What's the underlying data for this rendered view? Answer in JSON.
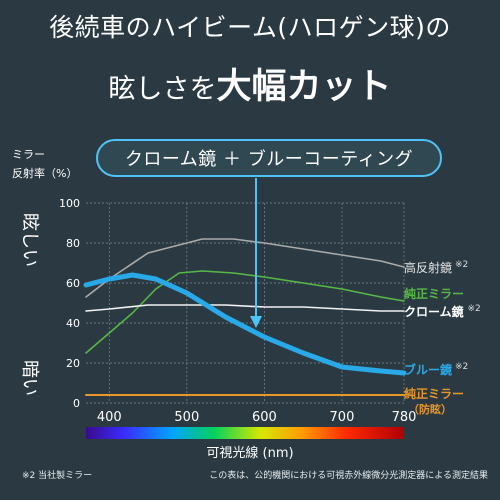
{
  "headline": {
    "line1": "後続車のハイビーム(ハロゲン球)の",
    "line2_prefix": "眩しさを",
    "line2_big": "大幅カット"
  },
  "callout": "クローム鏡 ＋ ブルーコーティング",
  "y_title_1": "ミラー",
  "y_title_2": "反射率（%）",
  "y_side_top": "眩しい",
  "y_side_bottom": "暗い",
  "x_title": "可視光線 (nm)",
  "footnote_left": "※2 当社製ミラー",
  "footnote_right": "この表は、公的機関における可視赤外線微分光測定器による測定結果",
  "colors": {
    "background": "#2b3a42",
    "blue": "#2aa9e8",
    "green": "#58b847",
    "gray": "#aaaaaa",
    "white": "#f2f2f2",
    "orange": "#e8952a",
    "callout_border": "#4fc3f7"
  },
  "chart_data": {
    "type": "line",
    "ylim": [
      0,
      100
    ],
    "yticks": [
      0,
      20,
      40,
      60,
      80,
      100
    ],
    "xlim": [
      370,
      780
    ],
    "xticks": [
      400,
      500,
      600,
      700,
      780
    ],
    "grid": true,
    "series": [
      {
        "name": "高反射鏡",
        "note": "※2",
        "color": "#aaaaaa",
        "points": [
          [
            370,
            53
          ],
          [
            400,
            62
          ],
          [
            450,
            75
          ],
          [
            500,
            80
          ],
          [
            520,
            82
          ],
          [
            560,
            82
          ],
          [
            600,
            80
          ],
          [
            650,
            77
          ],
          [
            700,
            74
          ],
          [
            750,
            71
          ],
          [
            780,
            68
          ]
        ]
      },
      {
        "name": "純正ミラー",
        "note": "",
        "color": "#58b847",
        "points": [
          [
            370,
            25
          ],
          [
            400,
            35
          ],
          [
            430,
            45
          ],
          [
            460,
            57
          ],
          [
            490,
            65
          ],
          [
            520,
            66
          ],
          [
            560,
            65
          ],
          [
            600,
            63
          ],
          [
            650,
            60
          ],
          [
            700,
            57
          ],
          [
            750,
            53
          ],
          [
            780,
            51
          ]
        ]
      },
      {
        "name": "クローム鏡",
        "note": "※2",
        "color": "#f2f2f2",
        "points": [
          [
            370,
            46
          ],
          [
            400,
            47
          ],
          [
            450,
            49
          ],
          [
            500,
            49
          ],
          [
            550,
            49
          ],
          [
            600,
            48
          ],
          [
            650,
            48
          ],
          [
            700,
            47
          ],
          [
            750,
            46
          ],
          [
            780,
            46
          ]
        ]
      },
      {
        "name": "ブルー鏡",
        "note": "※2",
        "color": "#2aa9e8",
        "points": [
          [
            370,
            59
          ],
          [
            400,
            62
          ],
          [
            430,
            64
          ],
          [
            460,
            62
          ],
          [
            500,
            55
          ],
          [
            550,
            43
          ],
          [
            600,
            33
          ],
          [
            650,
            25
          ],
          [
            700,
            18
          ],
          [
            750,
            16
          ],
          [
            780,
            15
          ]
        ]
      },
      {
        "name": "純正ミラー",
        "note": "（防眩）",
        "color": "#e8952a",
        "points": [
          [
            370,
            4
          ],
          [
            780,
            4
          ]
        ]
      }
    ]
  }
}
